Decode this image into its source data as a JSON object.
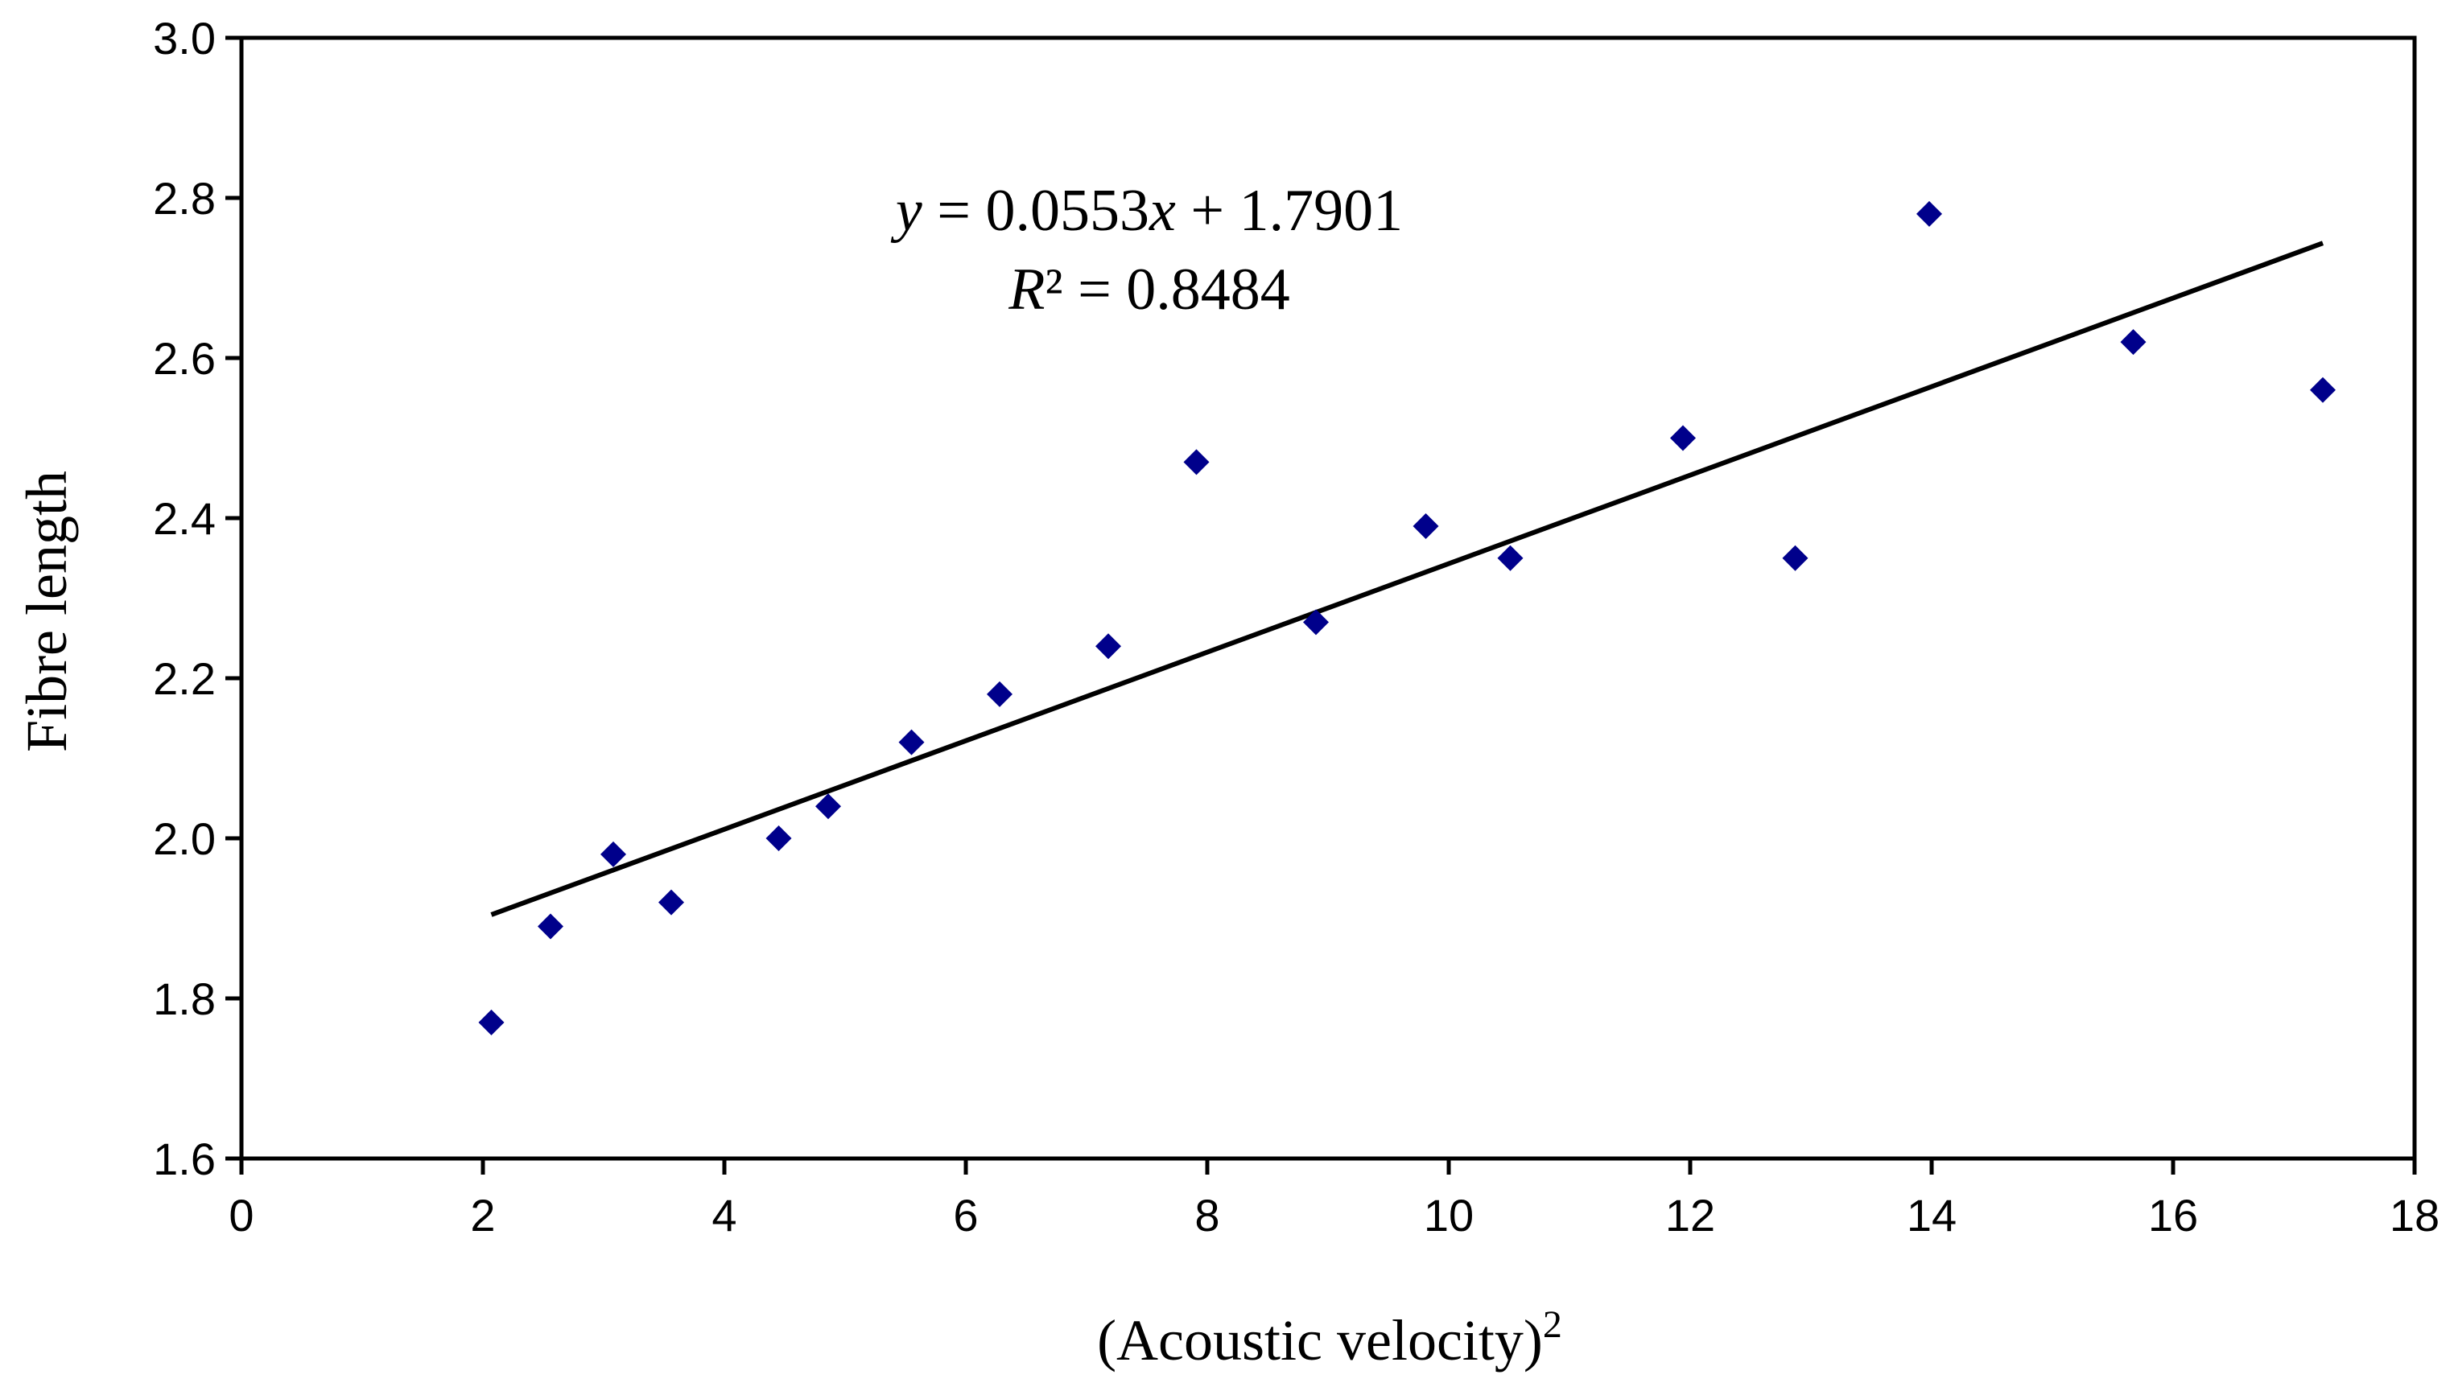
{
  "chart_data": {
    "type": "scatter",
    "title": "",
    "xlabel": "(Acoustic velocity)",
    "xlabel_superscript": "2",
    "ylabel": "Fibre length",
    "xlim": [
      0,
      18
    ],
    "ylim": [
      1.6,
      3.0
    ],
    "xticks": [
      "0",
      "2",
      "4",
      "6",
      "8",
      "10",
      "12",
      "14",
      "16",
      "18"
    ],
    "yticks": [
      "1.6",
      "1.8",
      "2.0",
      "2.2",
      "2.4",
      "2.6",
      "2.8",
      "3.0"
    ],
    "grid": false,
    "legend": "none",
    "series": [
      {
        "name": "Fibre length",
        "marker": "diamond",
        "color": "#00008B",
        "points": [
          {
            "x": 2.07,
            "y": 1.77
          },
          {
            "x": 2.56,
            "y": 1.89
          },
          {
            "x": 3.08,
            "y": 1.98
          },
          {
            "x": 3.56,
            "y": 1.92
          },
          {
            "x": 4.45,
            "y": 2.0
          },
          {
            "x": 4.86,
            "y": 2.04
          },
          {
            "x": 5.55,
            "y": 2.12
          },
          {
            "x": 6.28,
            "y": 2.18
          },
          {
            "x": 7.18,
            "y": 2.24
          },
          {
            "x": 7.91,
            "y": 2.47
          },
          {
            "x": 8.9,
            "y": 2.27
          },
          {
            "x": 9.81,
            "y": 2.39
          },
          {
            "x": 10.51,
            "y": 2.35
          },
          {
            "x": 11.94,
            "y": 2.5
          },
          {
            "x": 12.87,
            "y": 2.35
          },
          {
            "x": 13.98,
            "y": 2.78
          },
          {
            "x": 15.67,
            "y": 2.62
          },
          {
            "x": 17.24,
            "y": 2.56
          }
        ]
      }
    ],
    "trendline": {
      "type": "linear",
      "slope": 0.0553,
      "intercept": 1.7901,
      "x_range": [
        2.07,
        17.24
      ],
      "color": "#000000"
    },
    "annotations": {
      "eq_y": "y",
      "eq_rest": " = 0.0553",
      "eq_x": "x",
      "eq_tail": " + 1.7901",
      "r2_R": "R",
      "r2_rest": "² = 0.8484"
    }
  }
}
